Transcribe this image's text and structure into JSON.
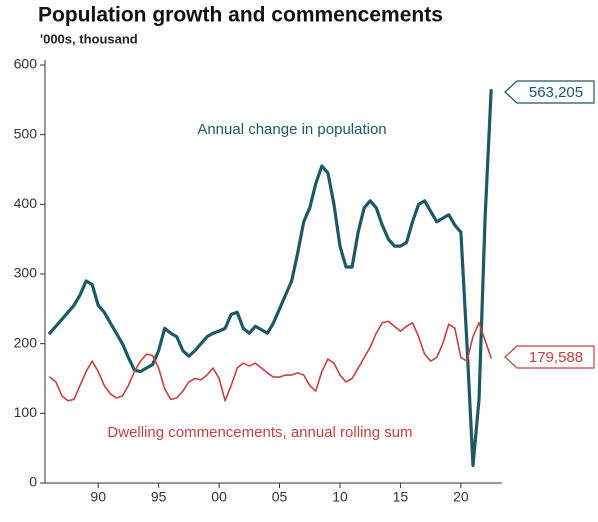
{
  "chart_data": {
    "type": "line",
    "title": "Population growth and commencements",
    "subtitle": "'000s, thousand",
    "annotations": [
      "Annual change in population",
      "Dwelling commencements, annual rolling sum"
    ],
    "x": [
      1986,
      1986.5,
      1987,
      1987.5,
      1988,
      1988.5,
      1989,
      1989.5,
      1990,
      1990.5,
      1991,
      1991.5,
      1992,
      1992.5,
      1993,
      1993.5,
      1994,
      1994.5,
      1995,
      1995.5,
      1996,
      1996.5,
      1997,
      1997.5,
      1998,
      1998.5,
      1999,
      1999.5,
      2000,
      2000.5,
      2001,
      2001.5,
      2002,
      2002.5,
      2003,
      2003.5,
      2004,
      2004.5,
      2005,
      2005.5,
      2006,
      2006.5,
      2007,
      2007.5,
      2008,
      2008.5,
      2009,
      2009.5,
      2010,
      2010.5,
      2011,
      2011.5,
      2012,
      2012.5,
      2013,
      2013.5,
      2014,
      2014.5,
      2015,
      2015.5,
      2016,
      2016.5,
      2017,
      2017.5,
      2018,
      2018.5,
      2019,
      2019.5,
      2020,
      2020.5,
      2021,
      2021.5,
      2022,
      2022.5
    ],
    "series": [
      {
        "name": "Annual change in population",
        "color": "#1c5866",
        "width": 3.2,
        "values": [
          215,
          225,
          235,
          245,
          255,
          270,
          290,
          285,
          255,
          245,
          230,
          215,
          200,
          180,
          162,
          160,
          165,
          170,
          190,
          222,
          215,
          210,
          190,
          182,
          190,
          200,
          210,
          215,
          218,
          222,
          242,
          245,
          222,
          215,
          225,
          220,
          215,
          230,
          250,
          270,
          290,
          330,
          375,
          395,
          430,
          455,
          445,
          400,
          340,
          310,
          310,
          360,
          395,
          405,
          395,
          370,
          350,
          340,
          340,
          345,
          375,
          400,
          405,
          390,
          375,
          380,
          385,
          370,
          360,
          200,
          25,
          120,
          380,
          563.205
        ],
        "value_labels": [
          null,
          null,
          null,
          null,
          null,
          null,
          null,
          null,
          null,
          null,
          null,
          null,
          null,
          null,
          null,
          null,
          null,
          null,
          null,
          null,
          null,
          null,
          null,
          null,
          null,
          null,
          null,
          null,
          null,
          null,
          null,
          null,
          null,
          null,
          null,
          null,
          null,
          null,
          null,
          null,
          null,
          null,
          null,
          null,
          null,
          null,
          null,
          null,
          null,
          null,
          null,
          null,
          null,
          null,
          null,
          null,
          null,
          null,
          null,
          null,
          null,
          null,
          null,
          null,
          null,
          null,
          null,
          null,
          null,
          null,
          null,
          null,
          null,
          "563,205"
        ]
      },
      {
        "name": "Dwelling commencements, annual rolling sum",
        "color": "#c8403f",
        "width": 1.6,
        "values": [
          152,
          145,
          125,
          118,
          120,
          140,
          160,
          175,
          160,
          140,
          128,
          122,
          125,
          140,
          160,
          175,
          185,
          183,
          165,
          135,
          120,
          122,
          132,
          145,
          150,
          148,
          155,
          165,
          150,
          118,
          140,
          165,
          172,
          168,
          172,
          165,
          158,
          152,
          152,
          155,
          155,
          158,
          155,
          140,
          132,
          160,
          178,
          172,
          155,
          145,
          150,
          165,
          180,
          195,
          215,
          230,
          232,
          225,
          218,
          225,
          230,
          210,
          185,
          175,
          180,
          200,
          228,
          222,
          180,
          175,
          210,
          230,
          205,
          179.588
        ],
        "value_labels": [
          null,
          null,
          null,
          null,
          null,
          null,
          null,
          null,
          null,
          null,
          null,
          null,
          null,
          null,
          null,
          null,
          null,
          null,
          null,
          null,
          null,
          null,
          null,
          null,
          null,
          null,
          null,
          null,
          null,
          null,
          null,
          null,
          null,
          null,
          null,
          null,
          null,
          null,
          null,
          null,
          null,
          null,
          null,
          null,
          null,
          null,
          null,
          null,
          null,
          null,
          null,
          null,
          null,
          null,
          null,
          null,
          null,
          null,
          null,
          null,
          null,
          null,
          null,
          null,
          null,
          null,
          null,
          null,
          null,
          null,
          null,
          null,
          null,
          "179,588"
        ]
      }
    ],
    "xlim": [
      1985.6,
      2023.4
    ],
    "xticks": [
      {
        "value": 1990,
        "label": "90"
      },
      {
        "value": 1995,
        "label": "95"
      },
      {
        "value": 2000,
        "label": "00"
      },
      {
        "value": 2005,
        "label": "05"
      },
      {
        "value": 2010,
        "label": "10"
      },
      {
        "value": 2015,
        "label": "15"
      },
      {
        "value": 2020,
        "label": "20"
      }
    ],
    "ylim": [
      0,
      600
    ],
    "yticks": [
      0,
      100,
      200,
      300,
      400,
      500,
      600
    ],
    "grid": false
  }
}
